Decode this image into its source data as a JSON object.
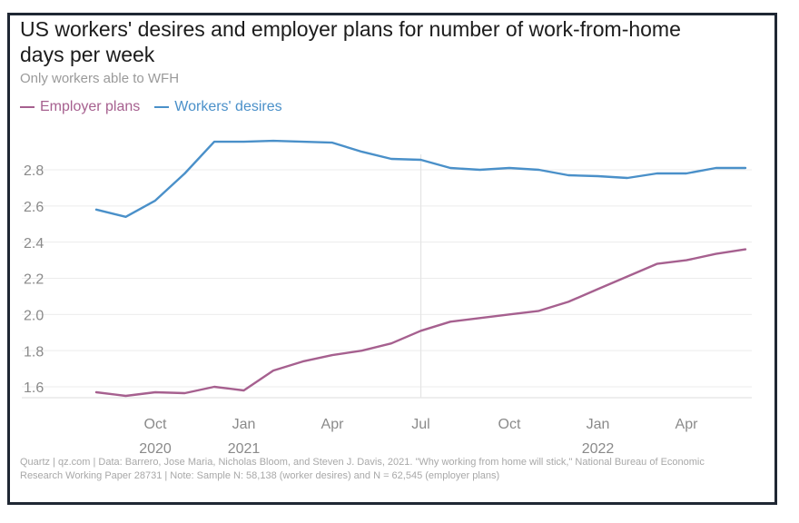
{
  "title": "US workers' desires and employer plans for number of work-from-home days per week",
  "subtitle": "Only workers able to WFH",
  "footer": "Quartz | qz.com | Data: Barrero, Jose Maria, Nicholas Bloom, and Steven J. Davis, 2021. \"Why working from home will stick,\" National Bureau of Economic Research Working Paper 28731 | Note: Sample N: 58,138 (worker desires) and N = 62,545 (employer plans)",
  "colors": {
    "employer": "#a6608f",
    "workers": "#4a90c9",
    "grid": "#ececec",
    "axis_text": "#8a8a8a"
  },
  "chart_data": {
    "type": "line",
    "title": "US workers' desires and employer plans for number of work-from-home days per week",
    "subtitle": "Only workers able to WFH",
    "xlabel": "",
    "ylabel": "",
    "ylim": [
      1.5,
      3.0
    ],
    "grid": true,
    "legend_position": "top-left",
    "x": [
      "2020-08",
      "2020-09",
      "2020-10",
      "2020-11",
      "2020-12",
      "2021-01",
      "2021-02",
      "2021-03",
      "2021-04",
      "2021-05",
      "2021-06",
      "2021-07",
      "2021-08",
      "2021-09",
      "2021-10",
      "2021-11",
      "2021-12",
      "2022-01",
      "2022-02",
      "2022-03",
      "2022-04",
      "2022-05",
      "2022-06"
    ],
    "x_ticks": [
      {
        "month": "Oct",
        "year": "2020",
        "x": "2020-10"
      },
      {
        "month": "Jan",
        "year": "2021",
        "x": "2021-01"
      },
      {
        "month": "Apr",
        "year": "",
        "x": "2021-04"
      },
      {
        "month": "Jul",
        "year": "",
        "x": "2021-07"
      },
      {
        "month": "Oct",
        "year": "",
        "x": "2021-10"
      },
      {
        "month": "Jan",
        "year": "2022",
        "x": "2022-01"
      },
      {
        "month": "Apr",
        "year": "",
        "x": "2022-04"
      }
    ],
    "y_ticks": [
      1.6,
      1.8,
      2.0,
      2.2,
      2.4,
      2.6,
      2.8
    ],
    "y_tick_labels": [
      "1.6",
      "1.8",
      "2.0",
      "2.2",
      "2.4",
      "2.6",
      "2.8"
    ],
    "highlight_x": "2021-07",
    "series": [
      {
        "name": "Employer plans",
        "key": "employer",
        "values": [
          1.57,
          1.55,
          1.57,
          1.565,
          1.6,
          1.58,
          1.69,
          1.74,
          1.775,
          1.8,
          1.84,
          1.91,
          1.96,
          1.98,
          2.0,
          2.02,
          2.07,
          2.14,
          2.21,
          2.28,
          2.3,
          2.335,
          2.36
        ]
      },
      {
        "name": "Workers' desires",
        "key": "workers",
        "values": [
          2.58,
          2.54,
          2.63,
          2.78,
          2.955,
          2.955,
          2.96,
          2.955,
          2.95,
          2.9,
          2.86,
          2.855,
          2.81,
          2.8,
          2.81,
          2.8,
          2.77,
          2.765,
          2.755,
          2.78,
          2.78,
          2.81,
          2.81
        ]
      }
    ]
  }
}
